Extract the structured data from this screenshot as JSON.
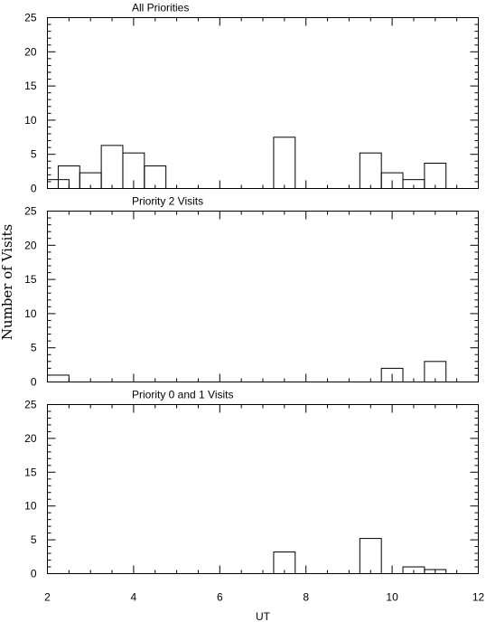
{
  "chart_data": {
    "type": "histogram",
    "shared_x": {
      "label": "UT",
      "range": [
        2,
        12
      ],
      "ticks": [
        2,
        4,
        6,
        8,
        10,
        12
      ],
      "tick_labels": [
        "2",
        "4",
        "6",
        "8",
        "10",
        "12"
      ],
      "bin_width": 0.5
    },
    "shared_ylabel": "Number of Visits",
    "panels": [
      {
        "title": "All Priorities",
        "ylim": [
          0,
          25
        ],
        "yticks": [
          0,
          5,
          10,
          15,
          20,
          25
        ],
        "ytick_labels": [
          "0",
          "5",
          "10",
          "15",
          "20",
          "25"
        ],
        "bins": [
          {
            "start": 2.0,
            "value": 1.3
          },
          {
            "start": 2.25,
            "value": 3.3
          },
          {
            "start": 2.75,
            "value": 2.3
          },
          {
            "start": 3.25,
            "value": 6.3
          },
          {
            "start": 3.75,
            "value": 5.2
          },
          {
            "start": 4.25,
            "value": 3.3
          },
          {
            "start": 7.25,
            "value": 7.5
          },
          {
            "start": 9.25,
            "value": 5.2
          },
          {
            "start": 9.75,
            "value": 2.3
          },
          {
            "start": 10.25,
            "value": 1.3
          },
          {
            "start": 10.75,
            "value": 3.7
          }
        ]
      },
      {
        "title": "Priority 2 Visits",
        "ylim": [
          0,
          25
        ],
        "yticks": [
          0,
          5,
          10,
          15,
          20,
          25
        ],
        "ytick_labels": [
          "0",
          "5",
          "10",
          "15",
          "20",
          "25"
        ],
        "bins": [
          {
            "start": 2.0,
            "value": 1.0
          },
          {
            "start": 9.75,
            "value": 2.0
          },
          {
            "start": 10.75,
            "value": 3.0
          }
        ]
      },
      {
        "title": "Priority 0 and 1 Visits",
        "ylim": [
          0,
          25
        ],
        "yticks": [
          0,
          5,
          10,
          15,
          20,
          25
        ],
        "ytick_labels": [
          "0",
          "5",
          "10",
          "15",
          "20",
          "25"
        ],
        "bins": [
          {
            "start": 7.25,
            "value": 3.2
          },
          {
            "start": 9.25,
            "value": 5.2
          },
          {
            "start": 10.25,
            "value": 1.0
          },
          {
            "start": 10.75,
            "value": 0.6
          }
        ]
      }
    ]
  }
}
